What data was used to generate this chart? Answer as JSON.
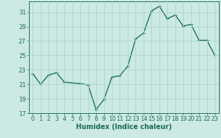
{
  "x": [
    0,
    1,
    2,
    3,
    4,
    5,
    6,
    7,
    8,
    9,
    10,
    11,
    12,
    13,
    14,
    15,
    16,
    17,
    18,
    19,
    20,
    21,
    22,
    23
  ],
  "y": [
    22.5,
    21.0,
    22.3,
    22.6,
    21.3,
    21.2,
    21.1,
    20.9,
    17.5,
    18.9,
    22.0,
    22.2,
    23.5,
    27.3,
    28.1,
    31.2,
    31.8,
    30.1,
    30.6,
    29.1,
    29.3,
    27.1,
    27.1,
    25.0
  ],
  "line_color": "#1a6b5a",
  "marker": "+",
  "marker_size": 3,
  "marker_linewidth": 0.8,
  "bg_color": "#cce9e4",
  "grid_color": "#a8d5cf",
  "axis_color": "#1a6b5a",
  "xlabel": "Humidex (Indice chaleur)",
  "xlim": [
    -0.5,
    23.5
  ],
  "ylim": [
    17,
    32.5
  ],
  "yticks": [
    17,
    19,
    21,
    23,
    25,
    27,
    29,
    31
  ],
  "xticks": [
    0,
    1,
    2,
    3,
    4,
    5,
    6,
    7,
    8,
    9,
    10,
    11,
    12,
    13,
    14,
    15,
    16,
    17,
    18,
    19,
    20,
    21,
    22,
    23
  ],
  "xlabel_fontsize": 7,
  "tick_fontsize": 6,
  "line_width": 1.0
}
